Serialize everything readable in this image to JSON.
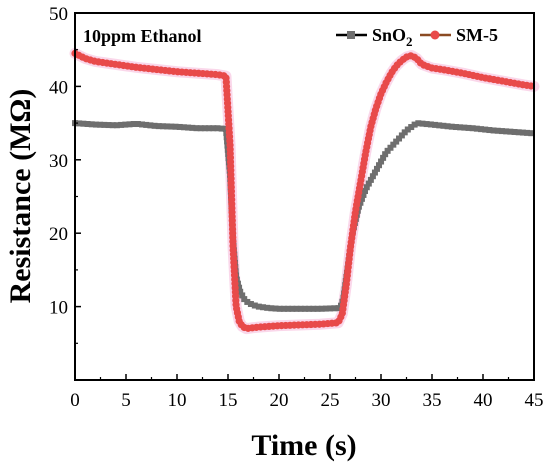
{
  "chart_data": {
    "type": "line",
    "annotation": "10ppm Ethanol",
    "xlabel": "Time (s)",
    "ylabel": "Resistance (MΩ)",
    "xlim": [
      0,
      45
    ],
    "ylim": [
      0,
      50
    ],
    "x_ticks": [
      "0",
      "5",
      "10",
      "15",
      "20",
      "25",
      "30",
      "35",
      "40",
      "45"
    ],
    "y_ticks": [
      "10",
      "20",
      "30",
      "40",
      "50"
    ],
    "grid": false,
    "legend_position": "top-right",
    "legend": [
      {
        "text": "SnO",
        "sub": "2"
      },
      {
        "text": "SM-5",
        "sub": ""
      }
    ],
    "series": [
      {
        "name": "SnO2",
        "line_color": "#000000",
        "marker_color": "#6e6e6e",
        "marker": "square",
        "x": [
          0,
          2,
          4,
          6,
          8,
          10,
          12,
          14,
          14.8,
          15.2,
          15.5,
          15.8,
          16.2,
          16.6,
          17,
          17.5,
          18,
          19,
          20,
          22,
          24,
          26,
          26.3,
          26.7,
          27.2,
          27.8,
          28.5,
          29.5,
          30.5,
          31.5,
          32.5,
          33.5,
          35,
          37,
          39,
          41,
          43,
          45
        ],
        "y": [
          35,
          34.8,
          34.7,
          34.9,
          34.6,
          34.5,
          34.3,
          34.3,
          34.2,
          28,
          19,
          14,
          12,
          11,
          10.5,
          10.2,
          10,
          9.8,
          9.7,
          9.7,
          9.7,
          9.8,
          11,
          15,
          20,
          23.5,
          26,
          28.5,
          31,
          32.5,
          34,
          35,
          34.8,
          34.5,
          34.3,
          34,
          33.8,
          33.6
        ]
      },
      {
        "name": "SM-5",
        "line_color": "#8b4a22",
        "marker_color": "#e84a4a",
        "marker": "circle",
        "x": [
          0,
          1,
          2,
          4,
          6,
          8,
          10,
          12,
          14,
          14.8,
          15.2,
          15.5,
          15.8,
          16.1,
          16.4,
          16.8,
          17.3,
          18,
          19,
          20,
          22,
          24,
          25.8,
          26.2,
          26.6,
          27,
          27.5,
          28,
          28.5,
          29,
          29.5,
          30,
          30.5,
          31,
          31.5,
          32,
          32.5,
          33,
          33.5,
          34,
          35,
          36,
          38,
          40,
          42,
          44,
          45
        ],
        "y": [
          44.5,
          43.8,
          43.4,
          43,
          42.6,
          42.3,
          42,
          41.8,
          41.6,
          41.4,
          32,
          18,
          10,
          8,
          7.3,
          7,
          7.1,
          7.2,
          7.3,
          7.4,
          7.5,
          7.6,
          7.8,
          9,
          13,
          18,
          23,
          27,
          31,
          34.5,
          37,
          39,
          40.5,
          41.8,
          42.8,
          43.5,
          44,
          44.2,
          43.8,
          43,
          42.5,
          42.3,
          41.8,
          41.2,
          40.7,
          40.2,
          40
        ]
      }
    ]
  }
}
